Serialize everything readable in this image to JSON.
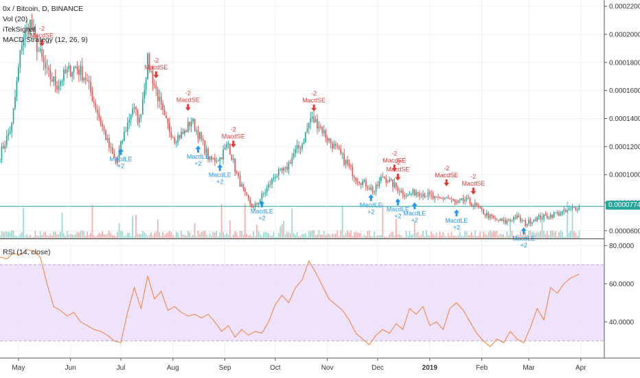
{
  "main_legend": {
    "symbol": "0x / Bitcoin, D, BINANCE",
    "vol": "Vol (20)",
    "signal": "iTekSignal",
    "strategy": "MACD Strategy (12, 26, 9)"
  },
  "rsi_legend": "RSI (14, close)",
  "last_price": "0.00007740",
  "colors": {
    "up": "#26a69a",
    "down": "#ef5350",
    "long_signal": "#2196f3",
    "short_signal": "#e53935",
    "rsi_line": "#f57c33",
    "rsi_band": "#ead9fb",
    "price_badge": "#26a69a"
  },
  "chart_data": [
    {
      "type": "candlestick",
      "title": "0x / Bitcoin, D, BINANCE",
      "x_ticks": [
        "May",
        "Jun",
        "Jul",
        "Aug",
        "Sep",
        "Oct",
        "Nov",
        "Dec",
        "2019",
        "Feb",
        "Mar",
        "Apr"
      ],
      "y_ticks": [
        "0.00006000",
        "0.00008000",
        "0.00010000",
        "0.00012000",
        "0.00014000",
        "0.00016000",
        "0.00018000",
        "0.00020000",
        "0.00022000"
      ],
      "ylim": [
        5.45e-05,
        0.0002245
      ],
      "price_path": [
        {
          "date": "2018-04-20",
          "close": 0.000114
        },
        {
          "date": "2018-04-27",
          "close": 0.000135
        },
        {
          "date": "2018-05-03",
          "close": 0.000195
        },
        {
          "date": "2018-05-08",
          "close": 0.000208
        },
        {
          "date": "2018-05-13",
          "close": 0.000188
        },
        {
          "date": "2018-05-18",
          "close": 0.000172
        },
        {
          "date": "2018-05-24",
          "close": 0.000164
        },
        {
          "date": "2018-05-29",
          "close": 0.000172
        },
        {
          "date": "2018-06-04",
          "close": 0.000177
        },
        {
          "date": "2018-06-10",
          "close": 0.000169
        },
        {
          "date": "2018-06-17",
          "close": 0.000145
        },
        {
          "date": "2018-06-23",
          "close": 0.000123
        },
        {
          "date": "2018-06-28",
          "close": 0.000108
        },
        {
          "date": "2018-07-03",
          "close": 0.000129
        },
        {
          "date": "2018-07-08",
          "close": 0.000148
        },
        {
          "date": "2018-07-12",
          "close": 0.000138
        },
        {
          "date": "2018-07-17",
          "close": 0.000181
        },
        {
          "date": "2018-07-22",
          "close": 0.00016
        },
        {
          "date": "2018-07-27",
          "close": 0.000139
        },
        {
          "date": "2018-08-02",
          "close": 0.000126
        },
        {
          "date": "2018-08-08",
          "close": 0.00013
        },
        {
          "date": "2018-08-12",
          "close": 0.000139
        },
        {
          "date": "2018-08-17",
          "close": 0.000127
        },
        {
          "date": "2018-08-23",
          "close": 0.00011
        },
        {
          "date": "2018-08-29",
          "close": 0.000112
        },
        {
          "date": "2018-09-03",
          "close": 0.000122
        },
        {
          "date": "2018-09-08",
          "close": 0.0001
        },
        {
          "date": "2018-09-13",
          "close": 8.5e-05
        },
        {
          "date": "2018-09-18",
          "close": 7.6e-05
        },
        {
          "date": "2018-09-25",
          "close": 8.8e-05
        },
        {
          "date": "2018-10-01",
          "close": 0.0001
        },
        {
          "date": "2018-10-07",
          "close": 0.000103
        },
        {
          "date": "2018-10-12",
          "close": 0.000115
        },
        {
          "date": "2018-10-17",
          "close": 0.000122
        },
        {
          "date": "2018-10-22",
          "close": 0.00014
        },
        {
          "date": "2018-10-27",
          "close": 0.000136
        },
        {
          "date": "2018-11-01",
          "close": 0.000126
        },
        {
          "date": "2018-11-07",
          "close": 0.000117
        },
        {
          "date": "2018-11-13",
          "close": 0.000107
        },
        {
          "date": "2018-11-18",
          "close": 9.8e-05
        },
        {
          "date": "2018-11-24",
          "close": 9.3e-05
        },
        {
          "date": "2018-11-29",
          "close": 8.8e-05
        },
        {
          "date": "2018-12-04",
          "close": 9.9e-05
        },
        {
          "date": "2018-12-09",
          "close": 9.4e-05
        },
        {
          "date": "2018-12-14",
          "close": 8.9e-05
        },
        {
          "date": "2018-12-19",
          "close": 8.5e-05
        },
        {
          "date": "2018-12-24",
          "close": 8.8e-05
        },
        {
          "date": "2018-12-30",
          "close": 8.6e-05
        },
        {
          "date": "2019-01-05",
          "close": 8.2e-05
        },
        {
          "date": "2019-01-11",
          "close": 8.4e-05
        },
        {
          "date": "2019-01-17",
          "close": 7.9e-05
        },
        {
          "date": "2019-01-22",
          "close": 8.2e-05
        },
        {
          "date": "2019-01-28",
          "close": 7.8e-05
        },
        {
          "date": "2019-02-03",
          "close": 7.2e-05
        },
        {
          "date": "2019-02-09",
          "close": 6.8e-05
        },
        {
          "date": "2019-02-15",
          "close": 6.6e-05
        },
        {
          "date": "2019-02-21",
          "close": 7e-05
        },
        {
          "date": "2019-02-27",
          "close": 6.5e-05
        },
        {
          "date": "2019-03-05",
          "close": 6.9e-05
        },
        {
          "date": "2019-03-11",
          "close": 7e-05
        },
        {
          "date": "2019-03-17",
          "close": 7.2e-05
        },
        {
          "date": "2019-03-22",
          "close": 7.3e-05
        },
        {
          "date": "2019-03-27",
          "close": 7.6e-05
        },
        {
          "date": "2019-03-31",
          "close": 7.74e-05
        }
      ],
      "horizontal_line": 7.74e-05,
      "signals": [
        {
          "date": "2018-05-15",
          "side": "short",
          "label": "MacdSE",
          "qty": "-2"
        },
        {
          "date": "2018-07-01",
          "side": "long",
          "label": "MacdLE",
          "qty": "+2"
        },
        {
          "date": "2018-07-22",
          "side": "short",
          "label": "MacdSE",
          "qty": "-2"
        },
        {
          "date": "2018-08-10",
          "side": "short",
          "label": "MacdSE",
          "qty": "-2"
        },
        {
          "date": "2018-08-16",
          "side": "long",
          "label": "MacdLE",
          "qty": "+2"
        },
        {
          "date": "2018-08-29",
          "side": "long",
          "label": "MacdLE",
          "qty": "+2"
        },
        {
          "date": "2018-09-06",
          "side": "short",
          "label": "MacdSE",
          "qty": "-2"
        },
        {
          "date": "2018-09-23",
          "side": "long",
          "label": "MacdLE",
          "qty": "+2"
        },
        {
          "date": "2018-10-24",
          "side": "short",
          "label": "MacdSE",
          "qty": "-2"
        },
        {
          "date": "2018-11-27",
          "side": "long",
          "label": "MacdLE",
          "qty": "+2"
        },
        {
          "date": "2018-12-11",
          "side": "short",
          "label": "MacdSE",
          "qty": "-2"
        },
        {
          "date": "2018-12-13",
          "side": "short",
          "label": "MacdSE",
          "qty": "-2"
        },
        {
          "date": "2018-12-13",
          "side": "long",
          "label": "MacdLE",
          "qty": "+2"
        },
        {
          "date": "2018-12-23",
          "side": "long",
          "label": "MacdLE",
          "qty": "+2"
        },
        {
          "date": "2019-01-11",
          "side": "short",
          "label": "MacdSE",
          "qty": "-2"
        },
        {
          "date": "2019-01-17",
          "side": "long",
          "label": "MacdLE",
          "qty": "+2"
        },
        {
          "date": "2019-01-27",
          "side": "short",
          "label": "MacdSE",
          "qty": "-2"
        },
        {
          "date": "2019-02-26",
          "side": "long",
          "label": "MacdLE",
          "qty": "+2"
        }
      ]
    },
    {
      "type": "line",
      "title": "RSI (14, close)",
      "y_ticks": [
        "40.0000",
        "60.0000",
        "80.0000"
      ],
      "ylim": [
        21,
        83
      ],
      "band": [
        30,
        70
      ],
      "x": [
        "2018-04-20",
        "2018-04-24",
        "2018-04-28",
        "2018-05-02",
        "2018-05-06",
        "2018-05-10",
        "2018-05-14",
        "2018-05-18",
        "2018-05-22",
        "2018-05-26",
        "2018-05-30",
        "2018-06-03",
        "2018-06-07",
        "2018-06-11",
        "2018-06-15",
        "2018-06-19",
        "2018-06-23",
        "2018-06-27",
        "2018-07-01",
        "2018-07-05",
        "2018-07-09",
        "2018-07-13",
        "2018-07-17",
        "2018-07-21",
        "2018-07-25",
        "2018-07-29",
        "2018-08-02",
        "2018-08-06",
        "2018-08-10",
        "2018-08-14",
        "2018-08-18",
        "2018-08-22",
        "2018-08-26",
        "2018-08-30",
        "2018-09-03",
        "2018-09-07",
        "2018-09-11",
        "2018-09-15",
        "2018-09-19",
        "2018-09-23",
        "2018-09-27",
        "2018-10-01",
        "2018-10-05",
        "2018-10-09",
        "2018-10-13",
        "2018-10-17",
        "2018-10-21",
        "2018-10-25",
        "2018-10-29",
        "2018-11-02",
        "2018-11-06",
        "2018-11-10",
        "2018-11-14",
        "2018-11-18",
        "2018-11-22",
        "2018-11-26",
        "2018-11-30",
        "2018-12-04",
        "2018-12-08",
        "2018-12-12",
        "2018-12-16",
        "2018-12-20",
        "2018-12-24",
        "2018-12-28",
        "2019-01-01",
        "2019-01-05",
        "2019-01-09",
        "2019-01-13",
        "2019-01-17",
        "2019-01-21",
        "2019-01-25",
        "2019-01-29",
        "2019-02-02",
        "2019-02-06",
        "2019-02-10",
        "2019-02-14",
        "2019-02-18",
        "2019-02-22",
        "2019-02-26",
        "2019-03-02",
        "2019-03-06",
        "2019-03-10",
        "2019-03-14",
        "2019-03-18",
        "2019-03-22",
        "2019-03-26",
        "2019-03-31"
      ],
      "values": [
        74,
        73,
        76,
        75,
        78,
        77,
        74,
        60,
        48,
        46,
        43,
        45,
        40,
        38,
        36,
        35,
        33,
        30,
        29,
        45,
        58,
        47,
        64,
        52,
        56,
        46,
        48,
        45,
        43,
        44,
        42,
        44,
        40,
        35,
        38,
        32,
        36,
        33,
        35,
        34,
        40,
        49,
        54,
        50,
        58,
        62,
        72,
        66,
        59,
        52,
        49,
        46,
        41,
        34,
        31,
        28,
        33,
        36,
        34,
        39,
        36,
        47,
        44,
        48,
        38,
        40,
        36,
        47,
        50,
        46,
        40,
        34,
        30,
        27,
        31,
        29,
        35,
        31,
        29,
        37,
        47,
        41,
        58,
        55,
        60,
        63,
        65
      ]
    }
  ]
}
